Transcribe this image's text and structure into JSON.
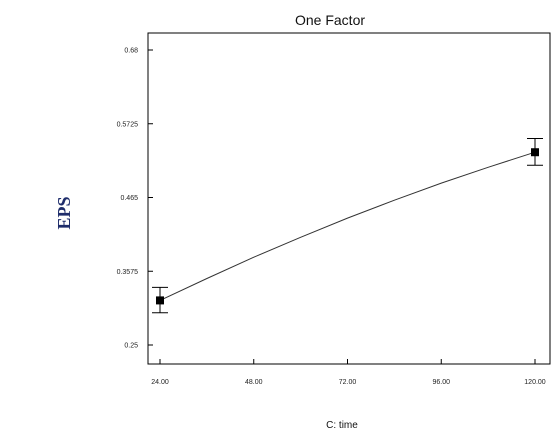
{
  "chart_data": {
    "type": "line",
    "title": "One Factor",
    "xlabel": "C: time",
    "ylabel": "EPS",
    "x_ticks": [
      "24.00",
      "48.00",
      "72.00",
      "96.00",
      "120.00"
    ],
    "y_ticks": [
      "0.25",
      "0.3575",
      "0.465",
      "0.5725",
      "0.68"
    ],
    "xlim": [
      24,
      120
    ],
    "ylim": [
      0.25,
      0.68
    ],
    "grid": false,
    "curve": {
      "x": [
        24,
        36,
        48,
        60,
        72,
        84,
        96,
        108,
        120
      ],
      "y": [
        0.315,
        0.347,
        0.378,
        0.407,
        0.435,
        0.461,
        0.486,
        0.509,
        0.531
      ]
    },
    "points": [
      {
        "x": 24,
        "y": 0.315,
        "err_low": 0.297,
        "err_high": 0.334
      },
      {
        "x": 120,
        "y": 0.531,
        "err_low": 0.512,
        "err_high": 0.551
      }
    ],
    "colors": {
      "axis": "#000000",
      "curve": "#333333",
      "marker": "#000000",
      "ylabel": "#1f2d6b"
    }
  }
}
